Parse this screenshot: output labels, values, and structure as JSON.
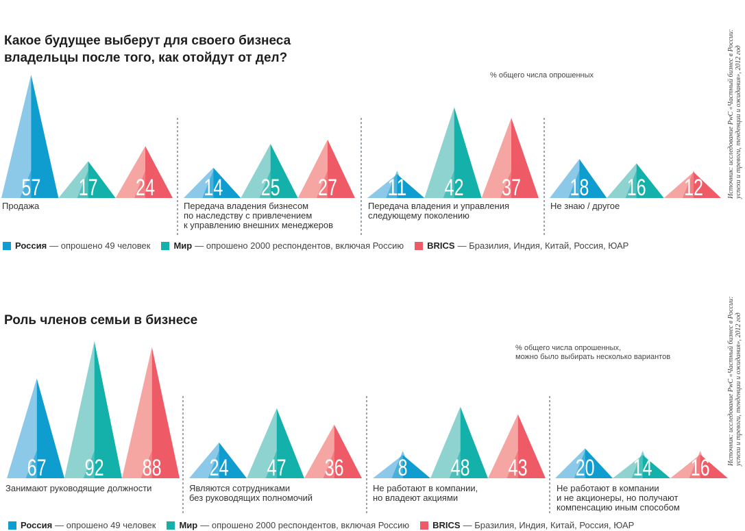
{
  "colors": {
    "russia": "#0f9dd0",
    "russia_light": "#8cc8e8",
    "world": "#14b1aa",
    "world_light": "#8fd3d0",
    "brics": "#ee5b66",
    "brics_light": "#f5a6a3"
  },
  "source_text": "Источник: исследование PwC «Частный бизнес в России:\nуспехи и тревоги, тенденции и ожидания», 2012 год",
  "legend": [
    {
      "name": "Россия",
      "desc": "— опрошено 49 человек",
      "color": "#0f9dd0"
    },
    {
      "name": "Мир",
      "desc": "— опрошено 2000 респондентов, включая Россию",
      "color": "#14b1aa"
    },
    {
      "name": "BRICS",
      "desc": "— Бразилия, Индия, Китай, Россия, ЮАР",
      "color": "#ee5b66"
    }
  ],
  "chart_data": [
    {
      "type": "bar",
      "title": "Какое будущее выберут для своего бизнеса владельцы после того, как отойдут от дел?",
      "note": "% общего числа опрошенных",
      "categories": [
        "Продажа",
        "Передача владения бизнесом\nпо наследству с привлечением\nк управлению внешних менеджеров",
        "Передача владения и управления\nследующему поколению",
        "Не знаю / другое"
      ],
      "series": [
        {
          "name": "Россия",
          "values": [
            57,
            14,
            11,
            18
          ]
        },
        {
          "name": "Мир",
          "values": [
            17,
            25,
            42,
            16
          ]
        },
        {
          "name": "BRICS",
          "values": [
            24,
            27,
            37,
            12
          ]
        }
      ]
    },
    {
      "type": "bar",
      "title": "Роль членов семьи в бизнесе",
      "note": "% общего числа опрошенных,\nможно было выбирать несколько вариантов",
      "categories": [
        "Занимают руководящие должности",
        "Являются сотрудниками\nбез руководящих полномочий",
        "Не работают в компании,\nно владеют акциями",
        "Не работают в компании\nи не акционеры, но получают\nкомпенсацию иным способом"
      ],
      "series": [
        {
          "name": "Россия",
          "values": [
            67,
            24,
            8,
            20
          ]
        },
        {
          "name": "Мир",
          "values": [
            92,
            47,
            48,
            14
          ]
        },
        {
          "name": "BRICS",
          "values": [
            88,
            36,
            43,
            16
          ]
        }
      ]
    }
  ]
}
